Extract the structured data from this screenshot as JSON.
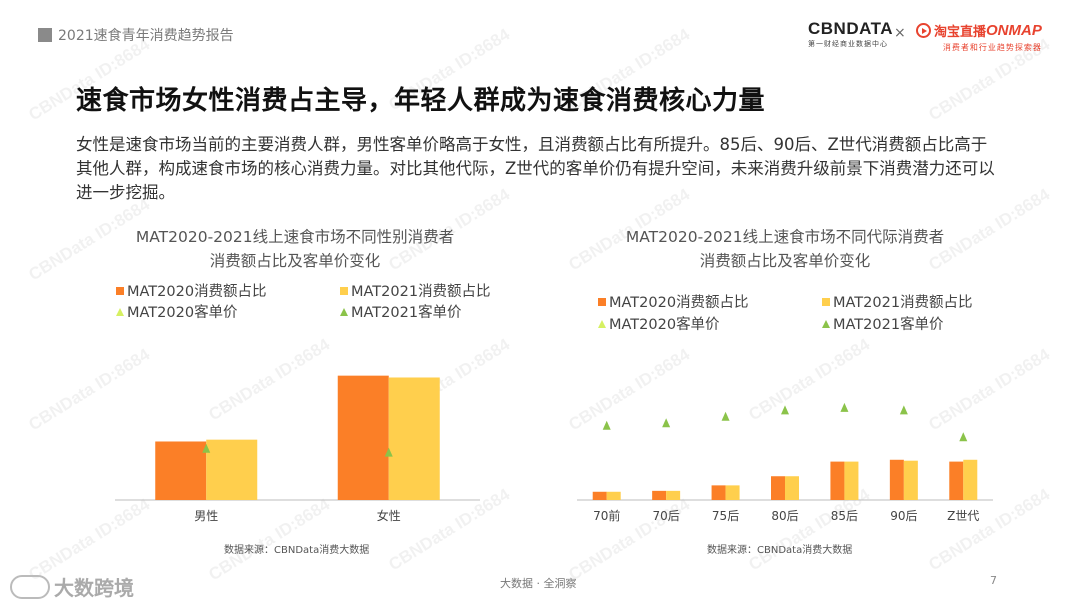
{
  "header": {
    "report_title": "2021速食青年消费趋势报告",
    "cbn_logo": "CBNDATA",
    "cbn_sub": "第一财经商业数据中心",
    "logo_separator": "×",
    "tb_logo_name": "淘宝直播",
    "tb_logo_onmap": "ONMAP",
    "tb_logo_sub": "消费者和行业趋势探索器"
  },
  "title": "速食市场女性消费占主导，年轻人群成为速食消费核心力量",
  "description": "女性是速食市场当前的主要消费人群，男性客单价略高于女性，且消费额占比有所提升。85后、90后、Z世代消费额占比高于其他人群，构成速食市场的核心消费力量。对比其他代际，Z世代的客单价仍有提升空间，未来消费升级前景下消费潜力还可以进一步挖掘。",
  "watermark_text": "CBNData ID:8684",
  "colors": {
    "mat2020_share": "#fb7f27",
    "mat2021_share": "#ffcf4d",
    "mat2020_price": "#d6f062",
    "mat2021_price": "#8bc34a"
  },
  "chart_data": [
    {
      "type": "bar",
      "title_line1": "MAT2020-2021线上速食市场不同性别消费者",
      "title_line2": "消费额占比及客单价变化",
      "categories": [
        "男性",
        "女性"
      ],
      "series": [
        {
          "name": "MAT2020消费额占比",
          "kind": "bar",
          "values": [
            32,
            68
          ]
        },
        {
          "name": "MAT2021消费额占比",
          "kind": "bar",
          "values": [
            33,
            67
          ]
        },
        {
          "name": "MAT2020客单价",
          "kind": "marker",
          "values": [
            null,
            null
          ]
        },
        {
          "name": "MAT2021客单价",
          "kind": "marker",
          "values": [
            40,
            37
          ]
        }
      ],
      "ylim": [
        0,
        70
      ],
      "price_ylim": [
        0,
        100
      ],
      "source": "数据来源：CBNData消费大数据"
    },
    {
      "type": "bar",
      "title_line1": "MAT2020-2021线上速食市场不同代际消费者",
      "title_line2": "消费额占比及客单价变化",
      "categories": [
        "70前",
        "70后",
        "75后",
        "80后",
        "85后",
        "90后",
        "Z世代"
      ],
      "series": [
        {
          "name": "MAT2020消费额占比",
          "kind": "bar",
          "values": [
            4.5,
            5,
            8,
            13,
            21,
            22,
            21
          ]
        },
        {
          "name": "MAT2021消费额占比",
          "kind": "bar",
          "values": [
            4.5,
            5,
            8,
            13,
            21,
            21.5,
            22
          ]
        },
        {
          "name": "MAT2020客单价",
          "kind": "marker",
          "values": [
            null,
            null,
            null,
            null,
            null,
            null,
            null
          ]
        },
        {
          "name": "MAT2021客单价",
          "kind": "marker",
          "values": [
            58,
            60,
            65,
            70,
            72,
            70,
            49
          ]
        }
      ],
      "ylim": [
        0,
        70
      ],
      "price_ylim": [
        0,
        100
      ],
      "source": "数据来源：CBNData消费大数据"
    }
  ],
  "footer": {
    "logo_text": "大数跨境",
    "center": "大数据 · 全洞察",
    "page_number": "7"
  }
}
